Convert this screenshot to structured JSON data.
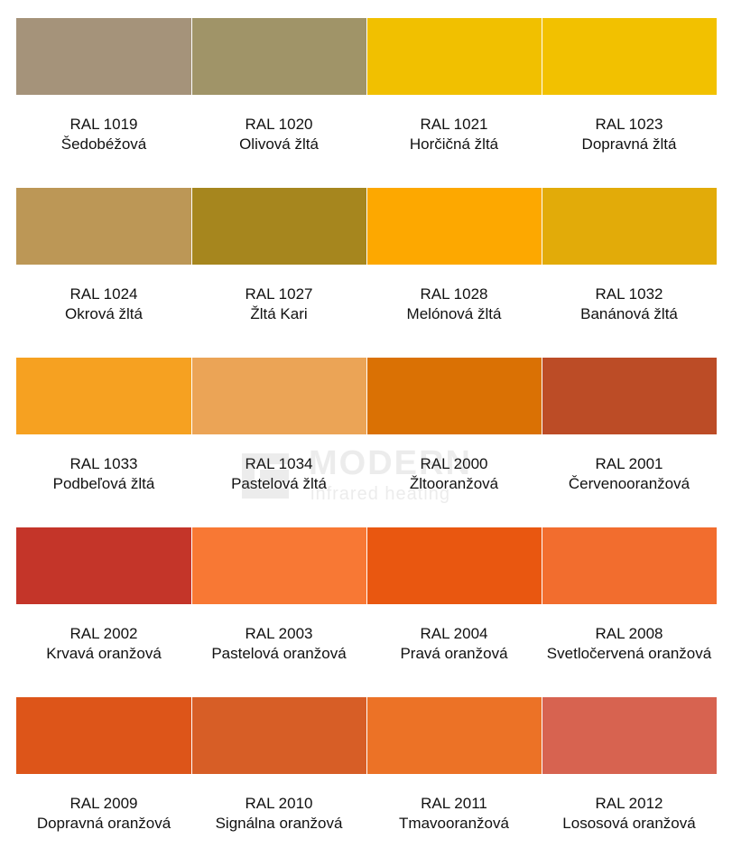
{
  "watermark": {
    "brand": "MODERN",
    "subtitle": "infrared heating"
  },
  "swatches": [
    {
      "code": "RAL 1019",
      "name": "Šedobéžová",
      "color": "#a5937a"
    },
    {
      "code": "RAL 1020",
      "name": "Olivová žltá",
      "color": "#a09468"
    },
    {
      "code": "RAL 1021",
      "name": "Horčičná žltá",
      "color": "#f1c000"
    },
    {
      "code": "RAL 1023",
      "name": "Dopravná žltá",
      "color": "#f2c100"
    },
    {
      "code": "RAL 1024",
      "name": "Okrová žltá",
      "color": "#bc9756"
    },
    {
      "code": "RAL 1027",
      "name": "Žltá Kari",
      "color": "#a6861e"
    },
    {
      "code": "RAL 1028",
      "name": "Melónová žltá",
      "color": "#fda800"
    },
    {
      "code": "RAL 1032",
      "name": "Banánová žltá",
      "color": "#e2ab09"
    },
    {
      "code": "RAL 1033",
      "name": "Podbeľová žltá",
      "color": "#f6a121"
    },
    {
      "code": "RAL 1034",
      "name": "Pastelová žltá",
      "color": "#eba456"
    },
    {
      "code": "RAL 2000",
      "name": "Žltooranžová",
      "color": "#da7104"
    },
    {
      "code": "RAL 2001",
      "name": "Červenooranžová",
      "color": "#bc4c26"
    },
    {
      "code": "RAL 2002",
      "name": "Krvavá oranžová",
      "color": "#c43529"
    },
    {
      "code": "RAL 2003",
      "name": "Pastelová oranžová",
      "color": "#f87834"
    },
    {
      "code": "RAL 2004",
      "name": "Pravá oranžová",
      "color": "#e95710"
    },
    {
      "code": "RAL 2008",
      "name": "Svetločervená oranžová",
      "color": "#f26d2e"
    },
    {
      "code": "RAL 2009",
      "name": "Dopravná oranžová",
      "color": "#dd5519"
    },
    {
      "code": "RAL 2010",
      "name": "Signálna oranžová",
      "color": "#d75e26"
    },
    {
      "code": "RAL 2011",
      "name": "Tmavooranžová",
      "color": "#ec7226"
    },
    {
      "code": "RAL 2012",
      "name": "Lososová oranžová",
      "color": "#d76350"
    }
  ]
}
